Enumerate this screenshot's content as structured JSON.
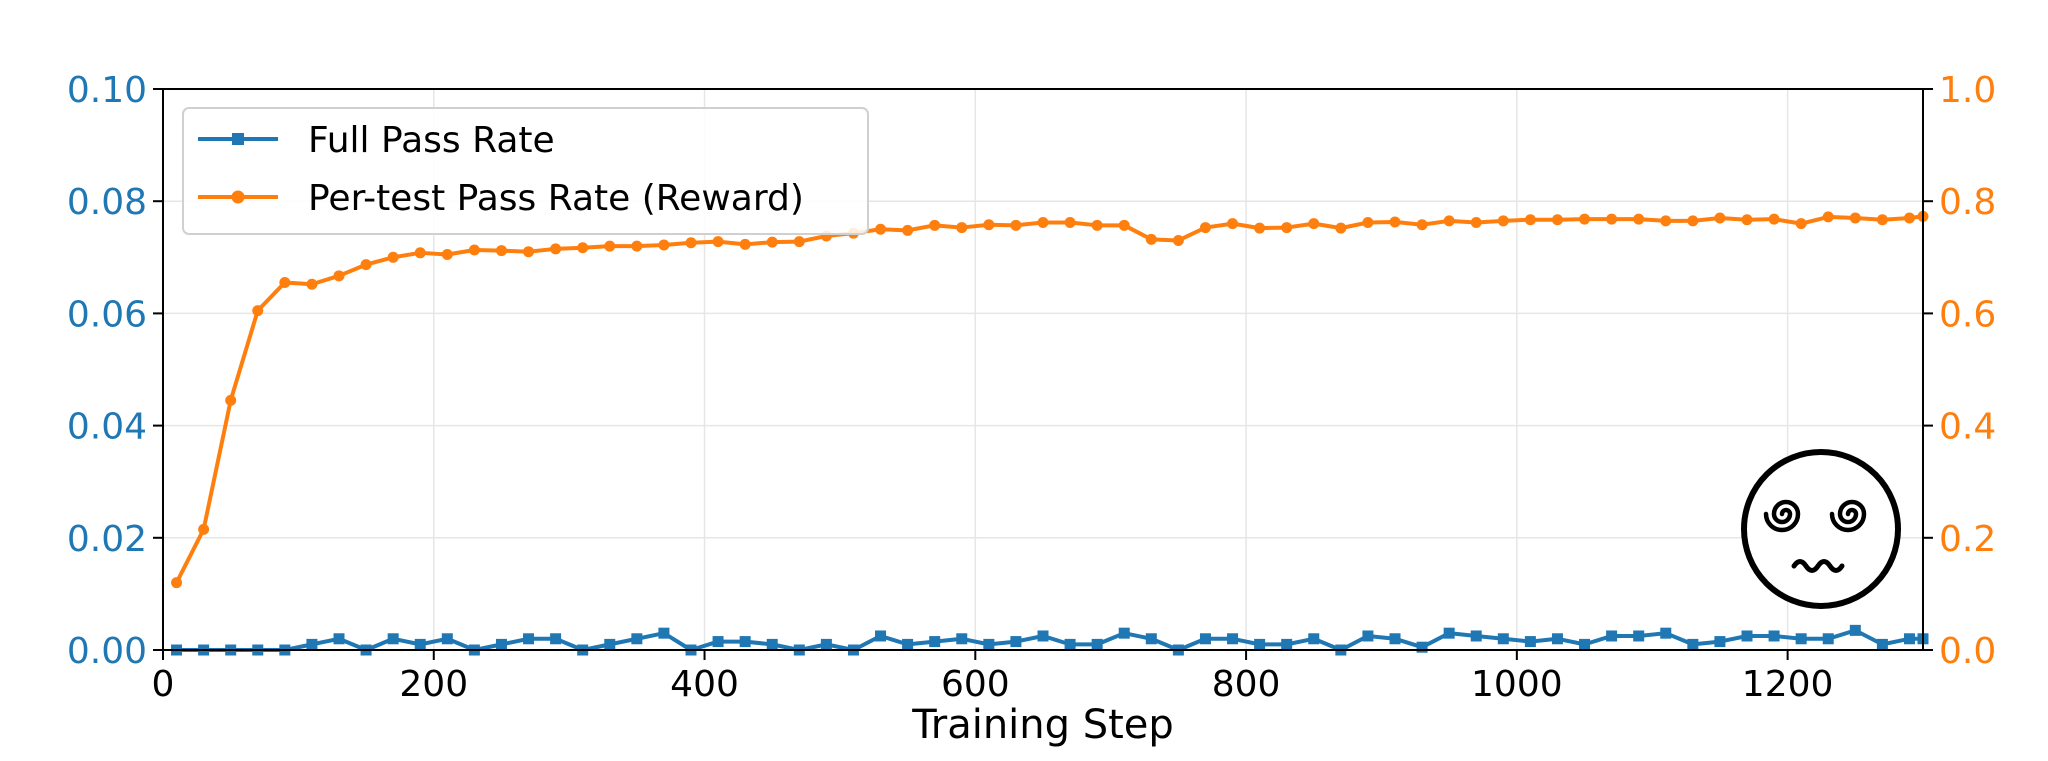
{
  "chart_data": {
    "type": "line",
    "xlabel": "Training Step",
    "xlim": [
      0,
      1300
    ],
    "x_ticks": [
      "0",
      "200",
      "400",
      "600",
      "800",
      "1000",
      "1200"
    ],
    "y_left": {
      "lim": [
        0,
        0.1
      ],
      "ticks": [
        "0.00",
        "0.02",
        "0.04",
        "0.06",
        "0.08",
        "0.10"
      ],
      "color": "#1f77b4"
    },
    "y_right": {
      "lim": [
        0,
        1.0
      ],
      "ticks": [
        "0.0",
        "0.2",
        "0.4",
        "0.6",
        "0.8",
        "1.0"
      ],
      "color": "#ff7f0e"
    },
    "grid": true,
    "legend_position": "top-left",
    "x": [
      10,
      30,
      50,
      70,
      90,
      110,
      130,
      150,
      170,
      190,
      210,
      230,
      250,
      270,
      290,
      310,
      330,
      350,
      370,
      390,
      410,
      430,
      450,
      470,
      490,
      510,
      530,
      550,
      570,
      590,
      610,
      630,
      650,
      670,
      690,
      710,
      730,
      750,
      770,
      790,
      810,
      830,
      850,
      870,
      890,
      910,
      930,
      950,
      970,
      990,
      1010,
      1030,
      1050,
      1070,
      1090,
      1110,
      1130,
      1150,
      1170,
      1190,
      1210,
      1230,
      1250,
      1270,
      1290,
      1300
    ],
    "series": [
      {
        "name": "Full Pass Rate",
        "axis": "left",
        "color": "#1f77b4",
        "marker": "square",
        "values": [
          0,
          0,
          0,
          0,
          0,
          0.001,
          0.002,
          0,
          0.002,
          0.001,
          0.002,
          0,
          0.001,
          0.002,
          0.002,
          0,
          0.001,
          0.002,
          0.003,
          0,
          0.0015,
          0.0015,
          0.001,
          0,
          0.001,
          0,
          0.0025,
          0.001,
          0.0015,
          0.002,
          0.001,
          0.0015,
          0.0025,
          0.001,
          0.001,
          0.003,
          0.002,
          0,
          0.002,
          0.002,
          0.001,
          0.001,
          0.002,
          0,
          0.0025,
          0.002,
          0.0005,
          0.003,
          0.0025,
          0.002,
          0.0015,
          0.002,
          0.001,
          0.0025,
          0.0025,
          0.003,
          0.001,
          0.0015,
          0.0025,
          0.0025,
          0.002,
          0.002,
          0.0035,
          0.001,
          0.002,
          0.002
        ]
      },
      {
        "name": "Per-test Pass Rate (Reward)",
        "axis": "right",
        "color": "#ff7f0e",
        "marker": "circle",
        "values": [
          0.12,
          0.215,
          0.445,
          0.605,
          0.655,
          0.652,
          0.667,
          0.687,
          0.7,
          0.708,
          0.705,
          0.713,
          0.712,
          0.71,
          0.715,
          0.717,
          0.72,
          0.72,
          0.722,
          0.726,
          0.728,
          0.723,
          0.727,
          0.728,
          0.738,
          0.743,
          0.75,
          0.748,
          0.757,
          0.753,
          0.758,
          0.757,
          0.762,
          0.762,
          0.757,
          0.757,
          0.732,
          0.73,
          0.753,
          0.76,
          0.752,
          0.753,
          0.76,
          0.752,
          0.762,
          0.763,
          0.758,
          0.765,
          0.762,
          0.765,
          0.767,
          0.767,
          0.768,
          0.768,
          0.768,
          0.765,
          0.765,
          0.77,
          0.767,
          0.768,
          0.76,
          0.772,
          0.77,
          0.767,
          0.77,
          0.773
        ]
      }
    ],
    "emoji": "😵‍💫"
  }
}
